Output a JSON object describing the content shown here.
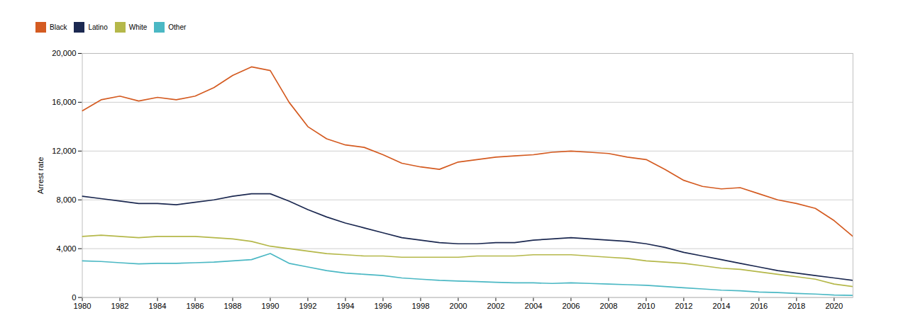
{
  "chart_data": {
    "type": "line",
    "ylabel": "Arrest rate",
    "x": [
      1980,
      1981,
      1982,
      1983,
      1984,
      1985,
      1986,
      1987,
      1988,
      1989,
      1990,
      1991,
      1992,
      1993,
      1994,
      1995,
      1996,
      1997,
      1998,
      1999,
      2000,
      2001,
      2002,
      2003,
      2004,
      2005,
      2006,
      2007,
      2008,
      2009,
      2010,
      2011,
      2012,
      2013,
      2014,
      2015,
      2016,
      2017,
      2018,
      2019,
      2020,
      2021
    ],
    "series": [
      {
        "name": "Black",
        "color": "#D45B21",
        "values": [
          15300,
          16200,
          16500,
          16100,
          16400,
          16200,
          16500,
          17200,
          18200,
          18900,
          18600,
          16000,
          14000,
          13000,
          12500,
          12300,
          11700,
          11000,
          10700,
          10500,
          11100,
          11300,
          11500,
          11600,
          11700,
          11900,
          12000,
          11900,
          11800,
          11500,
          11300,
          10500,
          9600,
          9100,
          8900,
          9000,
          8500,
          8000,
          7700,
          7300,
          6300,
          5000
        ]
      },
      {
        "name": "Latino",
        "color": "#1C2951",
        "values": [
          8300,
          8100,
          7900,
          7700,
          7700,
          7600,
          7800,
          8000,
          8300,
          8500,
          8500,
          7900,
          7200,
          6600,
          6100,
          5700,
          5300,
          4900,
          4700,
          4500,
          4400,
          4400,
          4500,
          4500,
          4700,
          4800,
          4900,
          4800,
          4700,
          4600,
          4400,
          4100,
          3700,
          3400,
          3100,
          2800,
          2500,
          2200,
          2000,
          1800,
          1600,
          1400
        ]
      },
      {
        "name": "White",
        "color": "#B5B84A",
        "values": [
          5000,
          5100,
          5000,
          4900,
          5000,
          5000,
          5000,
          4900,
          4800,
          4600,
          4200,
          4000,
          3800,
          3600,
          3500,
          3400,
          3400,
          3300,
          3300,
          3300,
          3300,
          3400,
          3400,
          3400,
          3500,
          3500,
          3500,
          3400,
          3300,
          3200,
          3000,
          2900,
          2800,
          2600,
          2400,
          2300,
          2100,
          1900,
          1700,
          1500,
          1100,
          900
        ]
      },
      {
        "name": "Other",
        "color": "#4BB8C4",
        "values": [
          3000,
          2950,
          2850,
          2750,
          2800,
          2800,
          2850,
          2900,
          3000,
          3100,
          3600,
          2800,
          2500,
          2200,
          2000,
          1900,
          1800,
          1600,
          1500,
          1400,
          1350,
          1300,
          1250,
          1200,
          1200,
          1150,
          1200,
          1150,
          1100,
          1050,
          1000,
          900,
          800,
          700,
          600,
          550,
          450,
          400,
          330,
          280,
          200,
          170
        ]
      }
    ],
    "xlim": [
      1980,
      2021
    ],
    "xticks": [
      1980,
      1982,
      1984,
      1986,
      1988,
      1990,
      1992,
      1994,
      1996,
      1998,
      2000,
      2002,
      2004,
      2006,
      2008,
      2010,
      2012,
      2014,
      2016,
      2018,
      2020
    ],
    "ylim": [
      0,
      20000
    ],
    "yticks": [
      0,
      {
        "value": 4000,
        "label": "4,000"
      },
      {
        "value": 8000,
        "label": "8,000"
      },
      {
        "value": 12000,
        "label": "12,000"
      },
      {
        "value": 16000,
        "label": "16,000"
      },
      {
        "value": 20000,
        "label": "20,000"
      }
    ],
    "grid": true,
    "legend": "top"
  }
}
